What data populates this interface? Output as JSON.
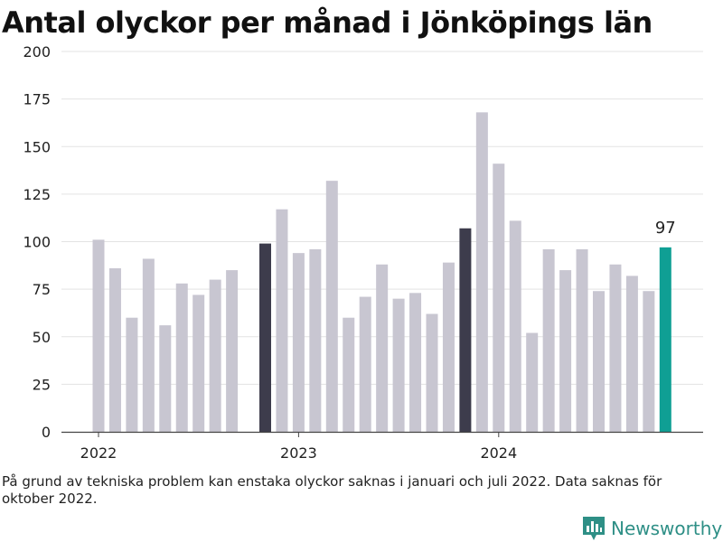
{
  "chart_data": {
    "type": "bar",
    "title": "Antal olyckor per månad i Jönköpings län",
    "ylim": [
      0,
      200
    ],
    "yticks": [
      0,
      25,
      50,
      75,
      100,
      125,
      150,
      175,
      200
    ],
    "x_tick_labels": [
      {
        "label": "2022",
        "bar_index": 0
      },
      {
        "label": "2023",
        "bar_index": 12
      },
      {
        "label": "2024",
        "bar_index": 24
      }
    ],
    "categories": [
      "2022-01",
      "2022-02",
      "2022-03",
      "2022-04",
      "2022-05",
      "2022-06",
      "2022-07",
      "2022-08",
      "2022-09",
      "2022-10",
      "2022-11",
      "2022-12",
      "2023-01",
      "2023-02",
      "2023-03",
      "2023-04",
      "2023-05",
      "2023-06",
      "2023-07",
      "2023-08",
      "2023-09",
      "2023-10",
      "2023-11",
      "2023-12",
      "2024-01",
      "2024-02",
      "2024-03",
      "2024-04",
      "2024-05",
      "2024-06",
      "2024-07",
      "2024-08",
      "2024-09",
      "2024-10",
      "2024-11"
    ],
    "values": [
      101,
      86,
      60,
      91,
      56,
      78,
      72,
      80,
      85,
      null,
      99,
      117,
      94,
      96,
      132,
      60,
      71,
      88,
      70,
      73,
      62,
      89,
      107,
      168,
      141,
      111,
      52,
      96,
      85,
      96,
      74,
      88,
      82,
      74,
      97
    ],
    "highlight_dark_indices": [
      10,
      22
    ],
    "highlight_last_index": 34,
    "last_value_label": "97",
    "grid": true,
    "colors": {
      "default_bar": "#c8c6d1",
      "dark_bar": "#3d3c4c",
      "last_bar": "#0f9f94",
      "grid": "#e3e3e3",
      "axis": "#444444"
    }
  },
  "footnote": "På grund av tekniska problem kan enstaka olyckor saknas i januari och juli 2022. Data saknas för oktober 2022.",
  "brand": {
    "name": "Newsworthy",
    "color": "#2e8f86",
    "icon": "newsworthy-logo-icon"
  }
}
